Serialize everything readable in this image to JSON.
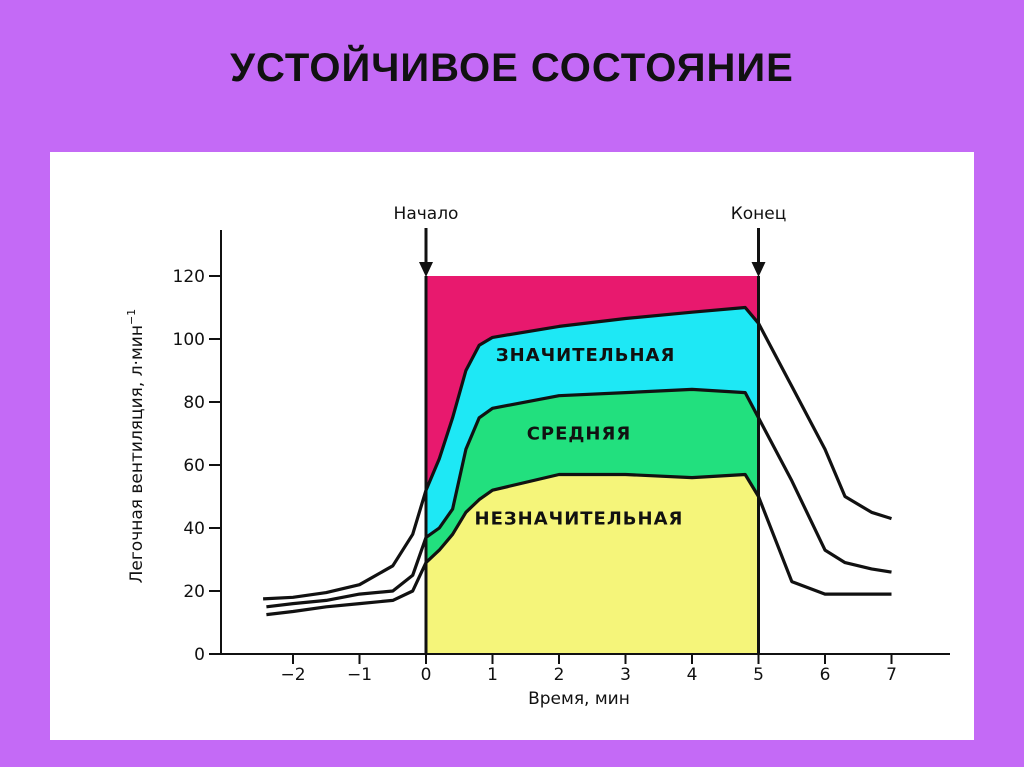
{
  "slide": {
    "title": "УСТОЙЧИВОЕ СОСТОЯНИЕ"
  },
  "chart_data": {
    "type": "line",
    "title": "",
    "xlabel": "Время, мин",
    "ylabel": "Легочная вентиляция, л·мин",
    "ylabel_superscript": "−1",
    "xlim": [
      -2.5,
      7.5
    ],
    "ylim": [
      0,
      130
    ],
    "x_ticks": [
      -2,
      -1,
      0,
      1,
      2,
      3,
      4,
      5,
      6,
      7
    ],
    "x_tick_labels": [
      "−2",
      "−1",
      "0",
      "1",
      "2",
      "3",
      "4",
      "5",
      "6",
      "7"
    ],
    "y_ticks": [
      0,
      20,
      40,
      60,
      80,
      100,
      120
    ],
    "y_tick_labels": [
      "0",
      "20",
      "40",
      "60",
      "80",
      "100",
      "120"
    ],
    "grid": false,
    "markers": [
      {
        "label": "Начало",
        "x": 0
      },
      {
        "label": "Конец",
        "x": 5
      }
    ],
    "exercise_box": {
      "x_start": 0,
      "x_end": 5,
      "y_top": 120,
      "color": "#e8196e"
    },
    "series": [
      {
        "name": "ЗНАЧИТЕЛЬНАЯ",
        "fill": "#1ee8f5",
        "label_at": {
          "x": 2.4,
          "y": 95
        },
        "points": [
          [
            -2.45,
            17.5
          ],
          [
            -2,
            18
          ],
          [
            -1.5,
            19.5
          ],
          [
            -1,
            22
          ],
          [
            -0.5,
            28
          ],
          [
            -0.2,
            38
          ],
          [
            0,
            52
          ],
          [
            0.2,
            62
          ],
          [
            0.4,
            75
          ],
          [
            0.6,
            90
          ],
          [
            0.8,
            98
          ],
          [
            1,
            100.5
          ],
          [
            2,
            104
          ],
          [
            3,
            106.5
          ],
          [
            4,
            108.5
          ],
          [
            4.8,
            110
          ],
          [
            5,
            105
          ],
          [
            5.5,
            85
          ],
          [
            6,
            65
          ],
          [
            6.3,
            50
          ],
          [
            6.7,
            45
          ],
          [
            7,
            43
          ]
        ]
      },
      {
        "name": "СРЕДНЯЯ",
        "fill": "#22e07e",
        "label_at": {
          "x": 2.3,
          "y": 70
        },
        "points": [
          [
            -2.4,
            15
          ],
          [
            -2,
            16
          ],
          [
            -1.5,
            17
          ],
          [
            -1,
            19
          ],
          [
            -0.5,
            20
          ],
          [
            -0.2,
            25
          ],
          [
            0,
            37
          ],
          [
            0.2,
            40
          ],
          [
            0.4,
            46
          ],
          [
            0.6,
            65
          ],
          [
            0.8,
            75
          ],
          [
            1,
            78
          ],
          [
            2,
            82
          ],
          [
            3,
            83
          ],
          [
            4,
            84
          ],
          [
            4.8,
            83
          ],
          [
            5,
            75
          ],
          [
            5.5,
            55
          ],
          [
            6,
            33
          ],
          [
            6.3,
            29
          ],
          [
            6.7,
            27
          ],
          [
            7,
            26
          ]
        ]
      },
      {
        "name": "НЕЗНАЧИТЕЛЬНАЯ",
        "fill": "#f5f57a",
        "label_at": {
          "x": 2.3,
          "y": 43
        },
        "points": [
          [
            -2.4,
            12.5
          ],
          [
            -2,
            13.5
          ],
          [
            -1.5,
            15
          ],
          [
            -1,
            16
          ],
          [
            -0.5,
            17
          ],
          [
            -0.2,
            20
          ],
          [
            0,
            29
          ],
          [
            0.2,
            33
          ],
          [
            0.4,
            38
          ],
          [
            0.6,
            45
          ],
          [
            0.8,
            49
          ],
          [
            1,
            52
          ],
          [
            2,
            57
          ],
          [
            3,
            57
          ],
          [
            4,
            56
          ],
          [
            4.8,
            57
          ],
          [
            5,
            50
          ],
          [
            5.5,
            23
          ],
          [
            6,
            19
          ],
          [
            6.5,
            19
          ],
          [
            7,
            19
          ]
        ]
      }
    ]
  }
}
